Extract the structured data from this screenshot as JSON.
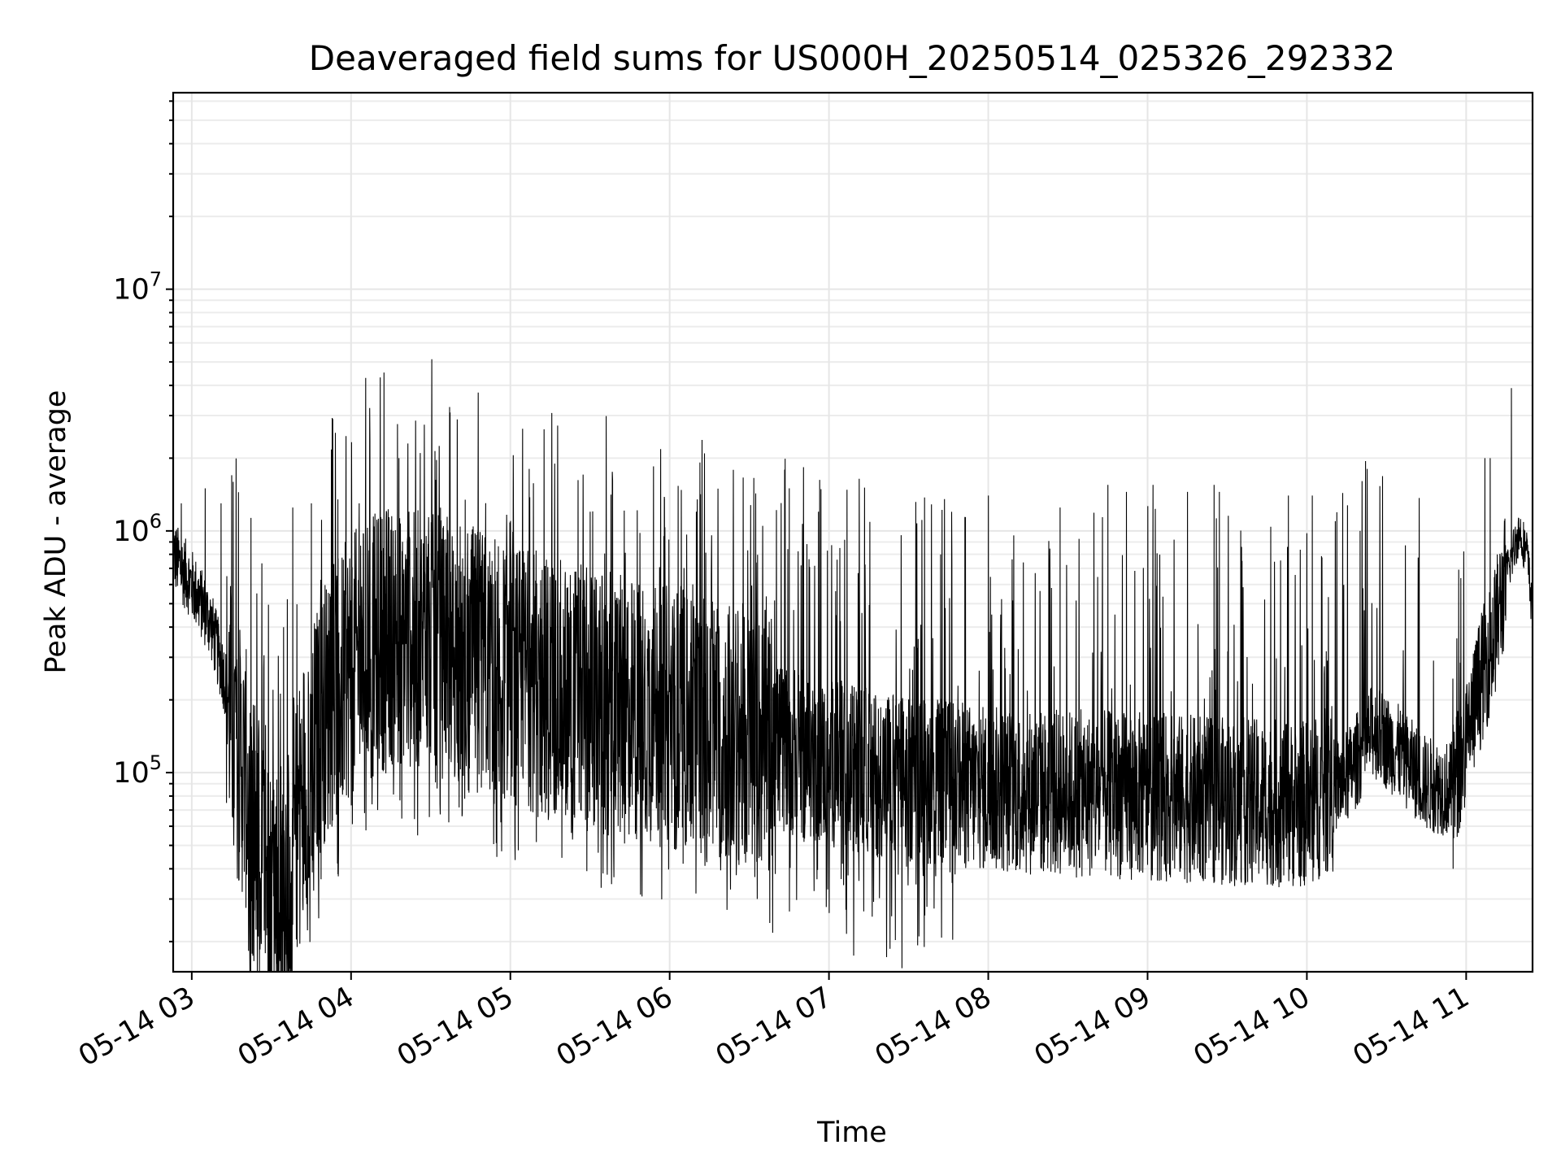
{
  "chart_data": {
    "type": "line",
    "title": "Deaveraged field sums for US000H_20250514_025326_292332",
    "xlabel": "Time",
    "ylabel": "Peak ADU - average",
    "yscale": "log",
    "ylim": [
      15000,
      65000000
    ],
    "xlim": [
      "05-14 02:53",
      "05-14 11:25"
    ],
    "grid": true,
    "x_ticks": [
      {
        "value": "05-14 03:00",
        "label": "05-14 03"
      },
      {
        "value": "05-14 04:00",
        "label": "05-14 04"
      },
      {
        "value": "05-14 05:00",
        "label": "05-14 05"
      },
      {
        "value": "05-14 06:00",
        "label": "05-14 06"
      },
      {
        "value": "05-14 07:00",
        "label": "05-14 07"
      },
      {
        "value": "05-14 08:00",
        "label": "05-14 08"
      },
      {
        "value": "05-14 09:00",
        "label": "05-14 09"
      },
      {
        "value": "05-14 10:00",
        "label": "05-14 10"
      },
      {
        "value": "05-14 11:00",
        "label": "05-14 11"
      }
    ],
    "y_ticks": [
      {
        "value": 100000,
        "base": "10",
        "exp": "5"
      },
      {
        "value": 1000000,
        "base": "10",
        "exp": "6"
      },
      {
        "value": 10000000,
        "base": "10",
        "exp": "7"
      }
    ],
    "series": [
      {
        "color": "#000000",
        "trend": [
          [
            "05-14 02:53",
            800000
          ],
          [
            "05-14 03:00",
            600000
          ],
          [
            "05-14 03:07",
            420000
          ],
          [
            "05-14 03:13",
            230000
          ],
          [
            "05-14 03:17",
            130000
          ],
          [
            "05-14 03:24",
            65000
          ],
          [
            "05-14 03:30",
            32000
          ],
          [
            "05-14 03:36",
            40000
          ],
          [
            "05-14 03:42",
            90000
          ],
          [
            "05-14 03:50",
            180000
          ],
          [
            "05-14 04:00",
            280000
          ],
          [
            "05-14 04:15",
            380000
          ],
          [
            "05-14 04:30",
            340000
          ],
          [
            "05-14 04:45",
            300000
          ],
          [
            "05-14 05:00",
            260000
          ],
          [
            "05-14 05:30",
            200000
          ],
          [
            "05-14 06:00",
            170000
          ],
          [
            "05-14 06:30",
            140000
          ],
          [
            "05-14 07:00",
            110000
          ],
          [
            "05-14 07:30",
            95000
          ],
          [
            "05-14 08:00",
            85000
          ],
          [
            "05-14 08:30",
            82000
          ],
          [
            "05-14 09:00",
            80000
          ],
          [
            "05-14 09:30",
            76000
          ],
          [
            "05-14 10:00",
            74000
          ],
          [
            "05-14 10:15",
            95000
          ],
          [
            "05-14 10:25",
            150000
          ],
          [
            "05-14 10:35",
            120000
          ],
          [
            "05-14 10:45",
            90000
          ],
          [
            "05-14 10:55",
            85000
          ],
          [
            "05-14 11:00",
            130000
          ],
          [
            "05-14 11:05",
            230000
          ],
          [
            "05-14 11:10",
            350000
          ],
          [
            "05-14 11:15",
            650000
          ],
          [
            "05-14 11:20",
            1000000
          ],
          [
            "05-14 11:23",
            800000
          ],
          [
            "05-14 11:25",
            450000
          ]
        ],
        "spikes": [
          [
            "05-14 02:56",
            1300000
          ],
          [
            "05-14 03:05",
            1500000
          ],
          [
            "05-14 03:11",
            1300000
          ],
          [
            "05-14 03:15",
            1700000
          ],
          [
            "05-14 03:38",
            1250000
          ],
          [
            "05-14 03:45",
            1300000
          ],
          [
            "05-14 03:55",
            1350000
          ],
          [
            "05-14 04:03",
            1300000
          ],
          [
            "05-14 04:18",
            2000000
          ],
          [
            "05-14 04:26",
            2100000
          ],
          [
            "05-14 04:40",
            1200000
          ],
          [
            "05-14 05:00",
            1100000
          ],
          [
            "05-14 05:30",
            1200000
          ],
          [
            "05-14 05:58",
            1350000
          ],
          [
            "05-14 06:10",
            1200000
          ],
          [
            "05-14 06:35",
            1050000
          ],
          [
            "05-14 06:45",
            1500000
          ],
          [
            "05-14 06:56",
            1200000
          ],
          [
            "05-14 07:03",
            760000
          ],
          [
            "05-14 07:33",
            1050000
          ],
          [
            "05-14 07:42",
            800000
          ],
          [
            "05-14 08:00",
            1400000
          ],
          [
            "05-14 08:27",
            1250000
          ],
          [
            "05-14 08:45",
            1550000
          ],
          [
            "05-14 08:52",
            1450000
          ],
          [
            "05-14 09:02",
            1550000
          ],
          [
            "05-14 09:15",
            1450000
          ],
          [
            "05-14 09:25",
            1550000
          ],
          [
            "05-14 09:27",
            1450000
          ],
          [
            "05-14 09:53",
            1400000
          ],
          [
            "05-14 10:02",
            1400000
          ],
          [
            "05-14 10:20",
            1000000
          ],
          [
            "05-14 11:07",
            2000000
          ],
          [
            "05-14 11:09",
            2000000
          ],
          [
            "05-14 11:17",
            3900000
          ]
        ],
        "dips": [
          [
            "05-14 03:25",
            21000
          ],
          [
            "05-14 03:29",
            20500
          ],
          [
            "05-14 03:35",
            27000
          ],
          [
            "05-14 03:55",
            38000
          ],
          [
            "05-14 04:05",
            68000
          ],
          [
            "05-14 04:25",
            55000
          ],
          [
            "05-14 06:05",
            42000
          ],
          [
            "05-14 06:32",
            37000
          ],
          [
            "05-14 07:05",
            42000
          ],
          [
            "05-14 08:20",
            40000
          ],
          [
            "05-14 09:25",
            40000
          ],
          [
            "05-14 10:55",
            40000
          ]
        ]
      }
    ]
  }
}
